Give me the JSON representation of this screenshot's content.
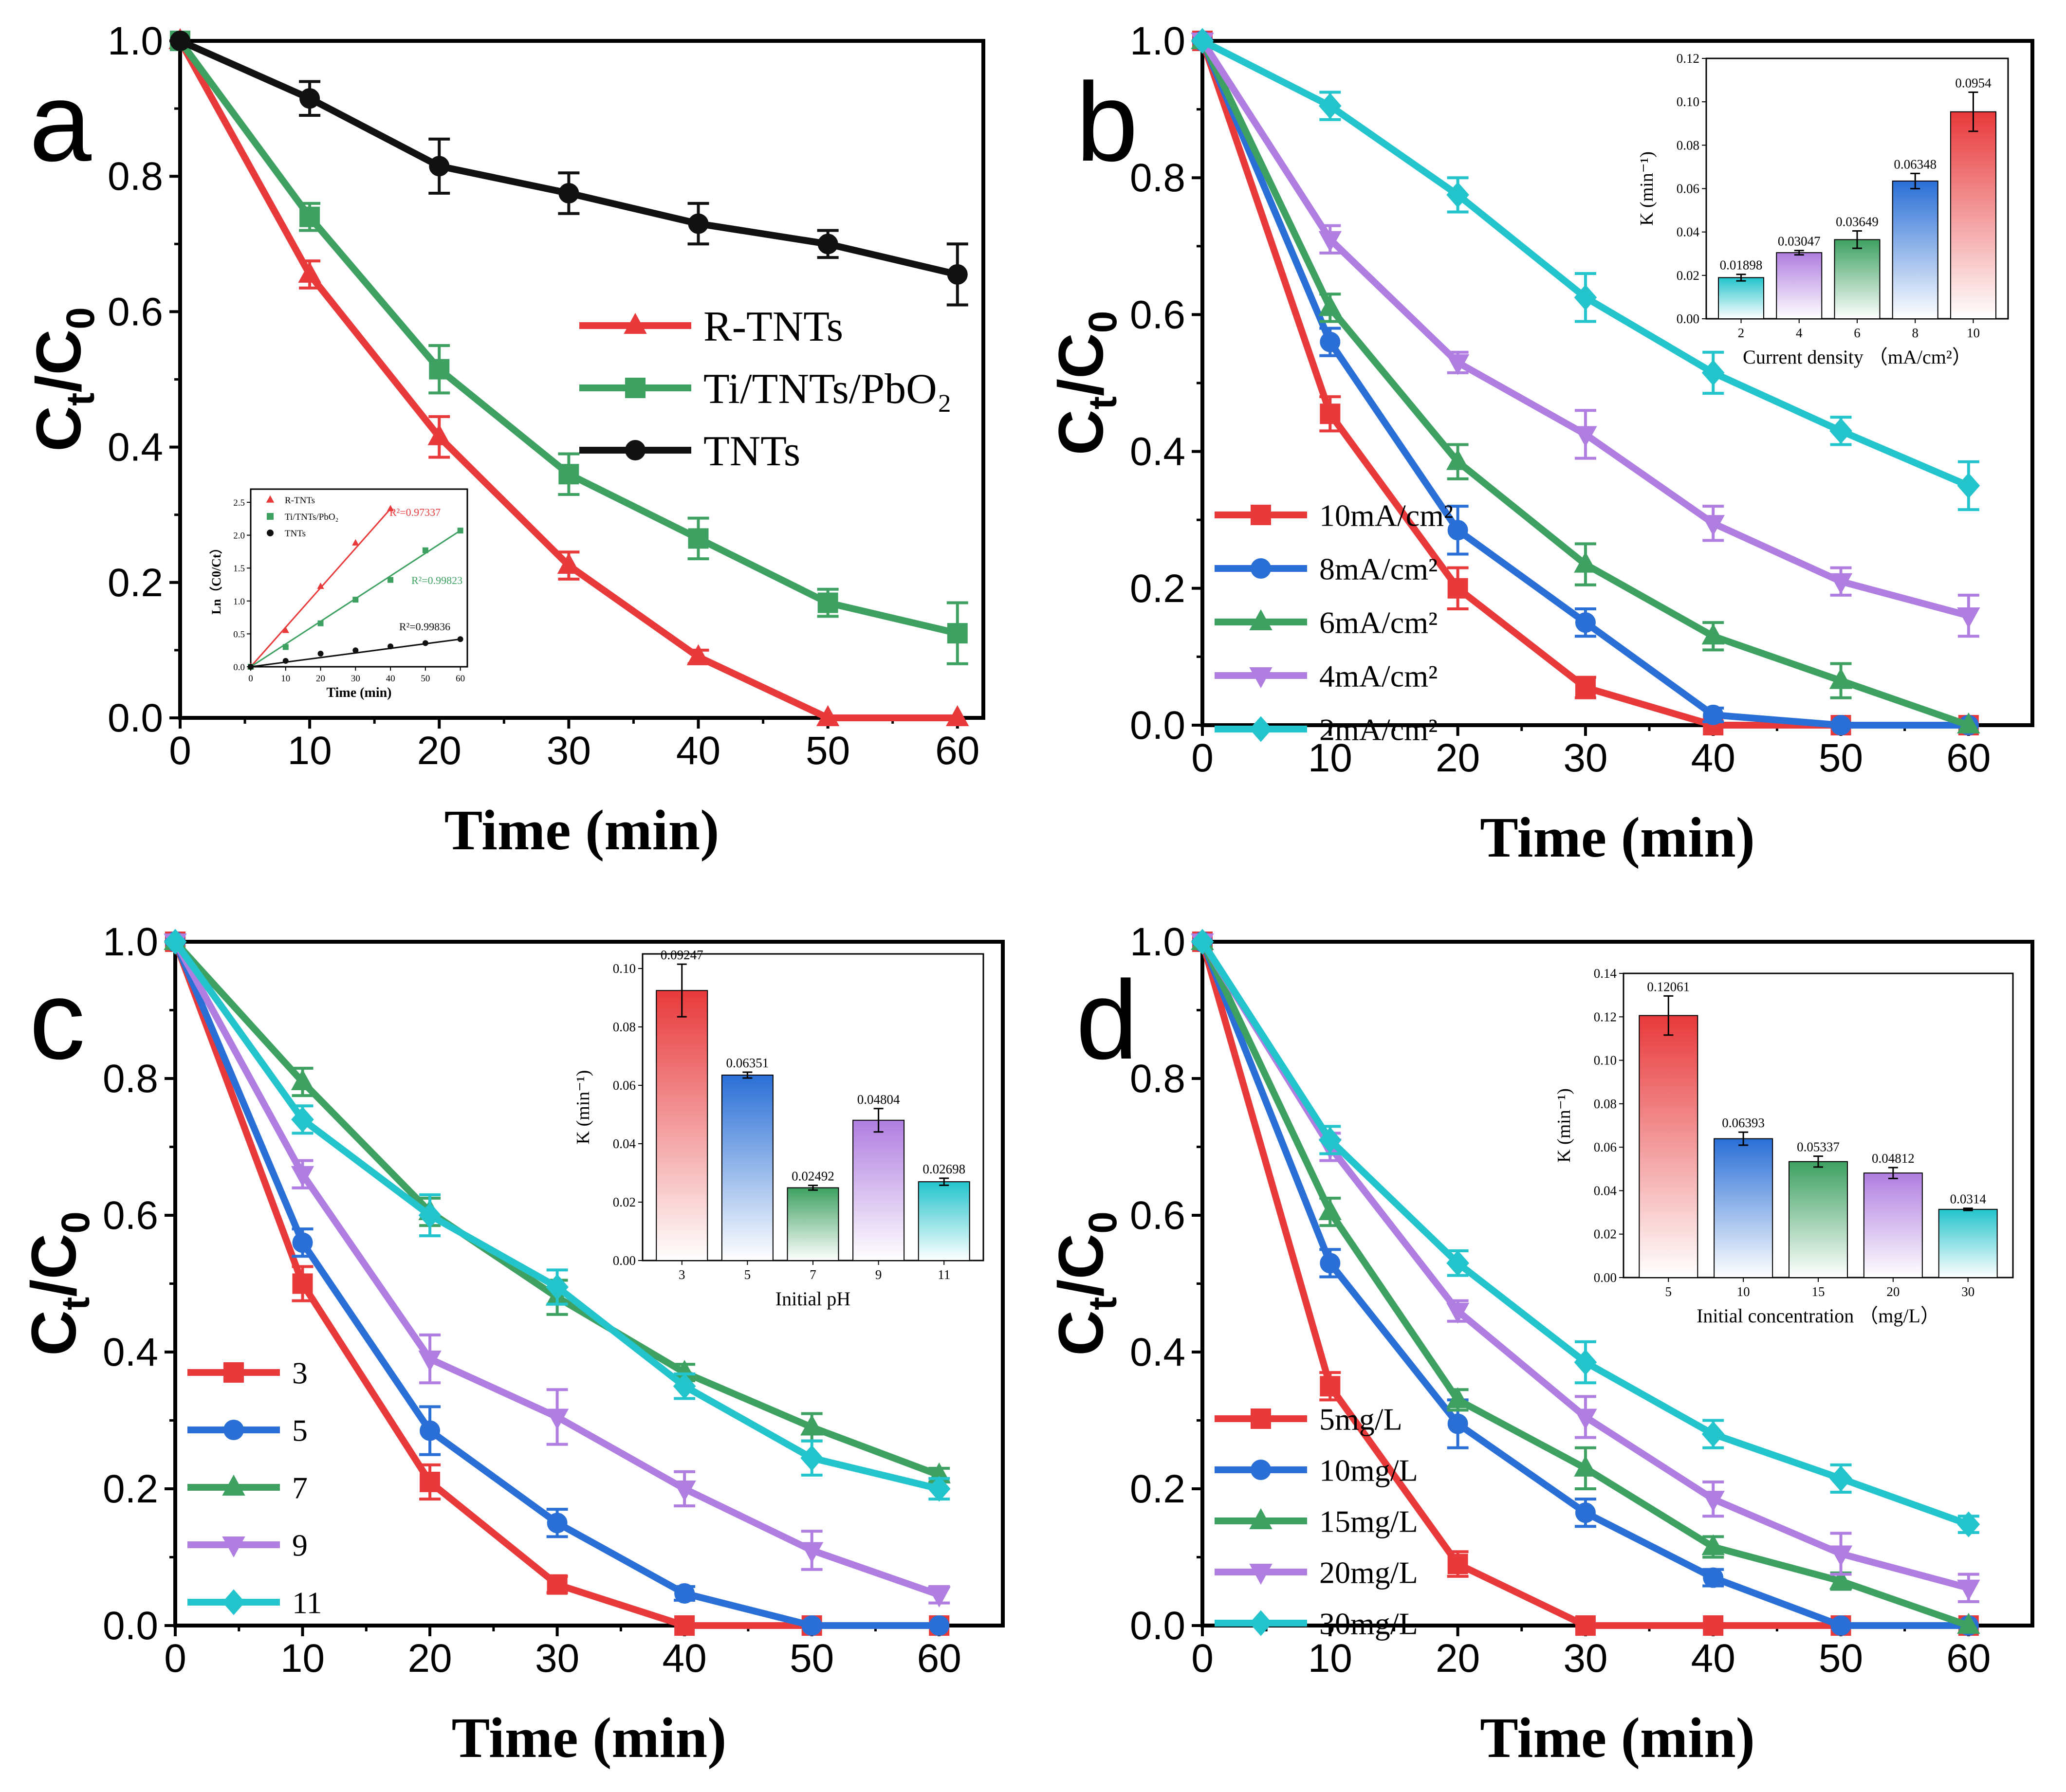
{
  "chart_data": [
    {
      "panel": "a",
      "type": "line",
      "xlabel": "Time (min)",
      "ylabel": "Ct/C0",
      "xlim": [
        0,
        62
      ],
      "ylim": [
        0,
        1.0
      ],
      "xticks": [
        "0",
        "10",
        "20",
        "30",
        "40",
        "50",
        "60"
      ],
      "yticks": [
        "0.0",
        "0.2",
        "0.4",
        "0.6",
        "0.8",
        "1.0"
      ],
      "x": [
        0,
        10,
        20,
        30,
        40,
        50,
        60
      ],
      "legend_position": "middle-right",
      "series": [
        {
          "name": "R-TNTs",
          "color": "#e8393b",
          "marker": "triangle",
          "values": [
            1.0,
            0.655,
            0.415,
            0.225,
            0.09,
            0.0,
            0.0
          ],
          "errors": [
            0,
            0.02,
            0.03,
            0.02,
            0.01,
            0,
            0
          ]
        },
        {
          "name": "Ti/TNTs/PbO₂",
          "color": "#3ea162",
          "marker": "square",
          "values": [
            1.0,
            0.74,
            0.515,
            0.36,
            0.265,
            0.17,
            0.125
          ],
          "errors": [
            0,
            0.02,
            0.035,
            0.03,
            0.03,
            0.02,
            0.045
          ]
        },
        {
          "name": "TNTs",
          "color": "#111111",
          "marker": "circle",
          "values": [
            1.0,
            0.915,
            0.815,
            0.775,
            0.73,
            0.7,
            0.655
          ],
          "errors": [
            0,
            0.025,
            0.04,
            0.03,
            0.03,
            0.02,
            0.045
          ]
        }
      ],
      "inset": {
        "type": "line",
        "xlabel": "Time (min)",
        "ylabel": "Ln（C0/Ct）",
        "xlim": [
          0,
          62
        ],
        "ylim": [
          0,
          2.7
        ],
        "xticks": [
          "0",
          "10",
          "20",
          "30",
          "40",
          "50",
          "60"
        ],
        "yticks": [
          "0.0",
          "0.5",
          "1.0",
          "1.5",
          "2.0",
          "2.5"
        ],
        "series": [
          {
            "name": "R-TNTs",
            "color": "#e8393b",
            "marker": "triangle",
            "x": [
              0,
              10,
              20,
              30,
              40
            ],
            "values": [
              0,
              0.55,
              1.22,
              1.88,
              2.4
            ],
            "annotation": "R²=0.97337"
          },
          {
            "name": "Ti/TNTs/PbO₂",
            "color": "#3ea162",
            "marker": "square",
            "x": [
              0,
              10,
              20,
              30,
              40,
              50,
              60
            ],
            "values": [
              0,
              0.3,
              0.66,
              1.02,
              1.32,
              1.77,
              2.07
            ],
            "annotation": "R²=0.99823"
          },
          {
            "name": "TNTs",
            "color": "#111111",
            "marker": "circle",
            "x": [
              0,
              10,
              20,
              30,
              40,
              50,
              60
            ],
            "values": [
              0,
              0.09,
              0.2,
              0.25,
              0.31,
              0.36,
              0.42
            ],
            "annotation": "R²=0.99836"
          }
        ]
      }
    },
    {
      "panel": "b",
      "type": "line",
      "xlabel": "Time (min)",
      "ylabel": "Ct/C0",
      "xlim": [
        0,
        65
      ],
      "ylim": [
        0,
        1.0
      ],
      "xticks": [
        "0",
        "10",
        "20",
        "30",
        "40",
        "50",
        "60"
      ],
      "yticks": [
        "0.0",
        "0.2",
        "0.4",
        "0.6",
        "0.8",
        "1.0"
      ],
      "x": [
        0,
        10,
        20,
        30,
        40,
        50,
        60
      ],
      "legend_position": "bottom-left",
      "series": [
        {
          "name": "10mA/cm²",
          "color": "#e8393b",
          "marker": "square",
          "values": [
            1.0,
            0.455,
            0.2,
            0.055,
            0.0,
            0.0,
            0.0
          ],
          "errors": [
            0,
            0.025,
            0.03,
            0.015,
            0,
            0,
            0
          ]
        },
        {
          "name": "8mA/cm²",
          "color": "#2a6fd6",
          "marker": "circle",
          "values": [
            1.0,
            0.56,
            0.285,
            0.15,
            0.015,
            0.0,
            0.0
          ],
          "errors": [
            0,
            0.02,
            0.035,
            0.02,
            0.01,
            0,
            0
          ]
        },
        {
          "name": "6mA/cm²",
          "color": "#3ea162",
          "marker": "triangle",
          "values": [
            1.0,
            0.61,
            0.385,
            0.235,
            0.13,
            0.065,
            0.0
          ],
          "errors": [
            0,
            0.02,
            0.025,
            0.03,
            0.02,
            0.025,
            0
          ]
        },
        {
          "name": "4mA/cm²",
          "color": "#b07ee0",
          "marker": "triangle-down",
          "values": [
            1.0,
            0.71,
            0.53,
            0.425,
            0.295,
            0.21,
            0.16
          ],
          "errors": [
            0,
            0.02,
            0.015,
            0.035,
            0.025,
            0.02,
            0.03
          ]
        },
        {
          "name": "2mA/cm²",
          "color": "#23c4cc",
          "marker": "diamond",
          "values": [
            1.0,
            0.905,
            0.775,
            0.625,
            0.515,
            0.43,
            0.35
          ],
          "errors": [
            0,
            0.02,
            0.025,
            0.035,
            0.03,
            0.02,
            0.035
          ]
        }
      ],
      "inset": {
        "type": "bar",
        "xlabel": "Current density （mA/cm²）",
        "ylabel": "K (min⁻¹)",
        "ylim": [
          0,
          0.12
        ],
        "yticks": [
          "0.00",
          "0.02",
          "0.04",
          "0.06",
          "0.08",
          "0.10",
          "0.12"
        ],
        "categories": [
          "2",
          "4",
          "6",
          "8",
          "10"
        ],
        "values": [
          0.01898,
          0.03047,
          0.03649,
          0.06348,
          0.0954
        ],
        "value_labels": [
          "0.01898",
          "0.03047",
          "0.03649",
          "0.06348",
          "0.0954"
        ],
        "errors": [
          0.0015,
          0.001,
          0.004,
          0.0035,
          0.009
        ],
        "colors": [
          "#23c4cc",
          "#b07ee0",
          "#3ea162",
          "#2a6fd6",
          "#e8393b"
        ]
      }
    },
    {
      "panel": "c",
      "type": "line",
      "xlabel": "Time (min)",
      "ylabel": "Ct/C0",
      "xlim": [
        0,
        65
      ],
      "ylim": [
        0,
        1.0
      ],
      "xticks": [
        "0",
        "10",
        "20",
        "30",
        "40",
        "50",
        "60"
      ],
      "yticks": [
        "0.0",
        "0.2",
        "0.4",
        "0.6",
        "0.8",
        "1.0"
      ],
      "x": [
        0,
        10,
        20,
        30,
        40,
        50,
        60
      ],
      "legend_position": "bottom-left",
      "series": [
        {
          "name": "3",
          "color": "#e8393b",
          "marker": "square",
          "values": [
            1.0,
            0.5,
            0.21,
            0.06,
            0.0,
            0.0,
            0.0
          ],
          "errors": [
            0,
            0.025,
            0.025,
            0.012,
            0,
            0,
            0
          ]
        },
        {
          "name": "5",
          "color": "#2a6fd6",
          "marker": "circle",
          "values": [
            1.0,
            0.56,
            0.285,
            0.15,
            0.047,
            0.0,
            0.0
          ],
          "errors": [
            0,
            0.02,
            0.035,
            0.02,
            0.01,
            0,
            0
          ]
        },
        {
          "name": "7",
          "color": "#3ea162",
          "marker": "triangle",
          "values": [
            1.0,
            0.795,
            0.605,
            0.48,
            0.37,
            0.29,
            0.22
          ],
          "errors": [
            0,
            0.02,
            0.02,
            0.025,
            0.012,
            0.02,
            0.01
          ]
        },
        {
          "name": "9",
          "color": "#b07ee0",
          "marker": "triangle-down",
          "values": [
            1.0,
            0.66,
            0.39,
            0.305,
            0.2,
            0.11,
            0.045
          ],
          "errors": [
            0,
            0.02,
            0.035,
            0.04,
            0.025,
            0.028,
            0.012
          ]
        },
        {
          "name": "11",
          "color": "#23c4cc",
          "marker": "diamond",
          "values": [
            1.0,
            0.74,
            0.6,
            0.495,
            0.35,
            0.245,
            0.2
          ],
          "errors": [
            0,
            0.02,
            0.03,
            0.025,
            0.018,
            0.025,
            0.015
          ]
        }
      ],
      "inset": {
        "type": "bar",
        "xlabel": "Initial pH",
        "ylabel": "K  (min⁻¹)",
        "ylim": [
          0,
          0.105
        ],
        "yticks": [
          "0.00",
          "0.02",
          "0.04",
          "0.06",
          "0.08",
          "0.10"
        ],
        "categories": [
          "3",
          "5",
          "7",
          "9",
          "11"
        ],
        "values": [
          0.09247,
          0.06351,
          0.02492,
          0.04804,
          0.02698
        ],
        "value_labels": [
          "0.09247",
          "0.06351",
          "0.02492",
          "0.04804",
          "0.02698"
        ],
        "errors": [
          0.009,
          0.001,
          0.0008,
          0.004,
          0.0012
        ],
        "colors": [
          "#e8393b",
          "#2a6fd6",
          "#3ea162",
          "#b07ee0",
          "#23c4cc"
        ]
      }
    },
    {
      "panel": "d",
      "type": "line",
      "xlabel": "Time (min)",
      "ylabel": "Ct/C0",
      "xlim": [
        0,
        65
      ],
      "ylim": [
        0,
        1.0
      ],
      "xticks": [
        "0",
        "10",
        "20",
        "30",
        "40",
        "50",
        "60"
      ],
      "yticks": [
        "0.0",
        "0.2",
        "0.4",
        "0.6",
        "0.8",
        "1.0"
      ],
      "x": [
        0,
        10,
        20,
        30,
        40,
        50,
        60
      ],
      "legend_position": "bottom-left",
      "series": [
        {
          "name": "5mg/L",
          "color": "#e8393b",
          "marker": "square",
          "values": [
            1.0,
            0.35,
            0.09,
            0.0,
            0.0,
            0.0,
            0.0
          ],
          "errors": [
            0,
            0.02,
            0.018,
            0,
            0,
            0,
            0
          ]
        },
        {
          "name": "10mg/L",
          "color": "#2a6fd6",
          "marker": "circle",
          "values": [
            1.0,
            0.53,
            0.295,
            0.165,
            0.07,
            0.0,
            0.0
          ],
          "errors": [
            0,
            0.02,
            0.035,
            0.02,
            0.012,
            0,
            0
          ]
        },
        {
          "name": "15mg/L",
          "color": "#3ea162",
          "marker": "triangle",
          "values": [
            1.0,
            0.605,
            0.33,
            0.23,
            0.115,
            0.065,
            0.0
          ],
          "errors": [
            0,
            0.02,
            0.015,
            0.03,
            0.015,
            0.012,
            0
          ]
        },
        {
          "name": "20mg/L",
          "color": "#b07ee0",
          "marker": "triangle-down",
          "values": [
            1.0,
            0.7,
            0.46,
            0.305,
            0.185,
            0.105,
            0.055
          ],
          "errors": [
            0,
            0.02,
            0.015,
            0.03,
            0.025,
            0.03,
            0.02
          ]
        },
        {
          "name": "30mg/L",
          "color": "#23c4cc",
          "marker": "diamond",
          "values": [
            1.0,
            0.71,
            0.53,
            0.385,
            0.28,
            0.215,
            0.148
          ],
          "errors": [
            0,
            0.02,
            0.018,
            0.03,
            0.02,
            0.02,
            0.012
          ]
        }
      ],
      "inset": {
        "type": "bar",
        "xlabel": "Initial concentration （mg/L）",
        "ylabel": "K (min⁻¹)",
        "ylim": [
          0,
          0.14
        ],
        "yticks": [
          "0.00",
          "0.02",
          "0.04",
          "0.06",
          "0.08",
          "0.10",
          "0.12",
          "0.14"
        ],
        "categories": [
          "5",
          "10",
          "15",
          "20",
          "30"
        ],
        "values": [
          0.12061,
          0.06393,
          0.05337,
          0.04812,
          0.0314
        ],
        "value_labels": [
          "0.12061",
          "0.06393",
          "0.05337",
          "0.04812",
          "0.0314"
        ],
        "errors": [
          0.009,
          0.003,
          0.0025,
          0.0025,
          0.0005
        ],
        "colors": [
          "#e8393b",
          "#2a6fd6",
          "#3ea162",
          "#b07ee0",
          "#23c4cc"
        ]
      }
    }
  ]
}
